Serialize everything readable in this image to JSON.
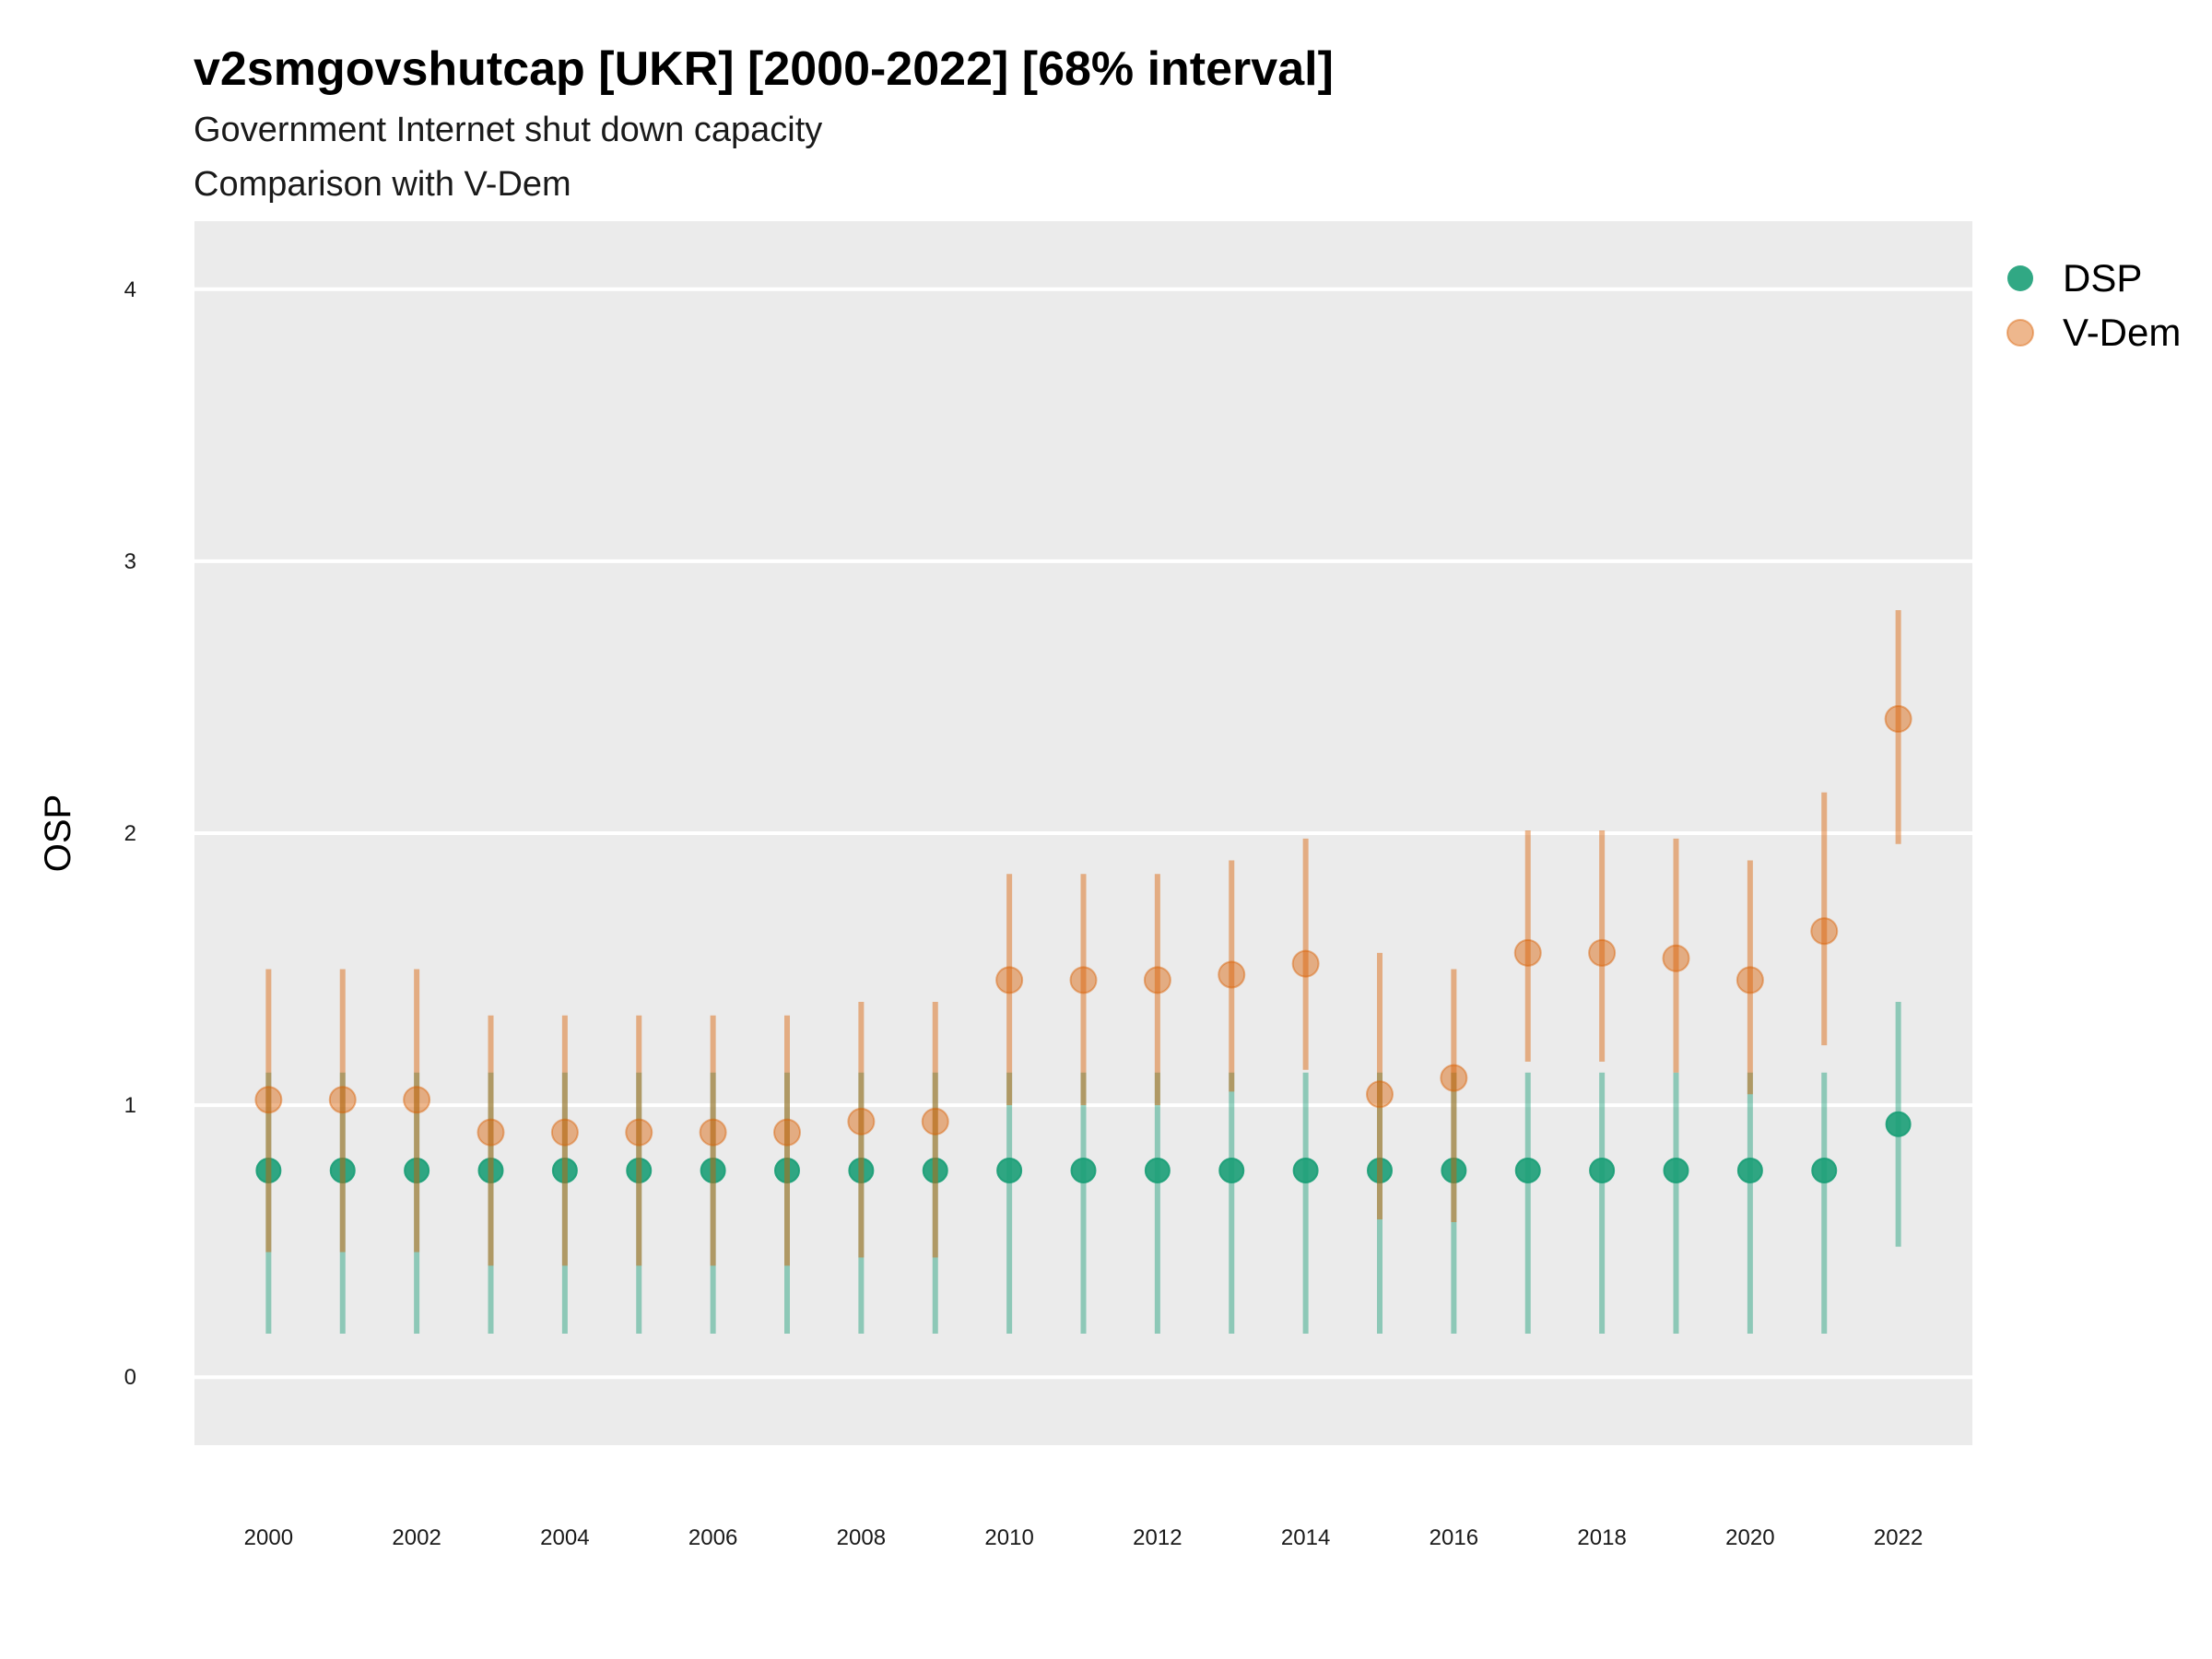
{
  "chart_data": {
    "type": "scatter",
    "title": "v2smgovshutcap [UKR] [2000-2022] [68% interval]",
    "subtitle_lines": [
      "Government Internet shut down capacity",
      "Comparison with V-Dem"
    ],
    "xlabel": "",
    "ylabel": "OSP",
    "xlim": [
      1999,
      2023
    ],
    "ylim": [
      -0.25,
      4.25
    ],
    "x_ticks": [
      2000,
      2002,
      2004,
      2006,
      2008,
      2010,
      2012,
      2014,
      2016,
      2018,
      2020,
      2022
    ],
    "y_ticks": [
      0,
      1,
      2,
      3,
      4
    ],
    "grid": true,
    "legend_position": "right",
    "x": [
      2000,
      2001,
      2002,
      2003,
      2004,
      2005,
      2006,
      2007,
      2008,
      2009,
      2010,
      2011,
      2012,
      2013,
      2014,
      2015,
      2016,
      2017,
      2018,
      2019,
      2020,
      2021,
      2022
    ],
    "series": [
      {
        "name": "DSP",
        "color": "#1b9e77",
        "values": [
          0.76,
          0.76,
          0.76,
          0.76,
          0.76,
          0.76,
          0.76,
          0.76,
          0.76,
          0.76,
          0.76,
          0.76,
          0.76,
          0.76,
          0.76,
          0.76,
          0.76,
          0.76,
          0.76,
          0.76,
          0.76,
          0.76,
          0.93
        ],
        "lower": [
          0.16,
          0.16,
          0.16,
          0.16,
          0.16,
          0.16,
          0.16,
          0.16,
          0.16,
          0.16,
          0.16,
          0.16,
          0.16,
          0.16,
          0.16,
          0.16,
          0.16,
          0.16,
          0.16,
          0.16,
          0.16,
          0.16,
          0.48
        ],
        "upper": [
          1.12,
          1.12,
          1.12,
          1.12,
          1.12,
          1.12,
          1.12,
          1.12,
          1.12,
          1.12,
          1.12,
          1.12,
          1.12,
          1.12,
          1.12,
          1.12,
          1.12,
          1.12,
          1.12,
          1.12,
          1.12,
          1.12,
          1.38
        ]
      },
      {
        "name": "V-Dem",
        "color": "#d95f02",
        "values": [
          1.02,
          1.02,
          1.02,
          0.9,
          0.9,
          0.9,
          0.9,
          0.9,
          0.94,
          0.94,
          1.46,
          1.46,
          1.46,
          1.48,
          1.52,
          1.04,
          1.1,
          1.56,
          1.56,
          1.54,
          1.46,
          1.64,
          2.42
        ],
        "lower": [
          0.46,
          0.46,
          0.46,
          0.41,
          0.41,
          0.41,
          0.41,
          0.41,
          0.44,
          0.44,
          1.0,
          1.0,
          1.0,
          1.05,
          1.13,
          0.58,
          0.57,
          1.16,
          1.16,
          1.12,
          1.04,
          1.22,
          1.96
        ],
        "upper": [
          1.5,
          1.5,
          1.5,
          1.33,
          1.33,
          1.33,
          1.33,
          1.33,
          1.38,
          1.38,
          1.85,
          1.85,
          1.85,
          1.9,
          1.98,
          1.56,
          1.5,
          2.01,
          2.01,
          1.98,
          1.9,
          2.15,
          2.82
        ]
      }
    ]
  }
}
